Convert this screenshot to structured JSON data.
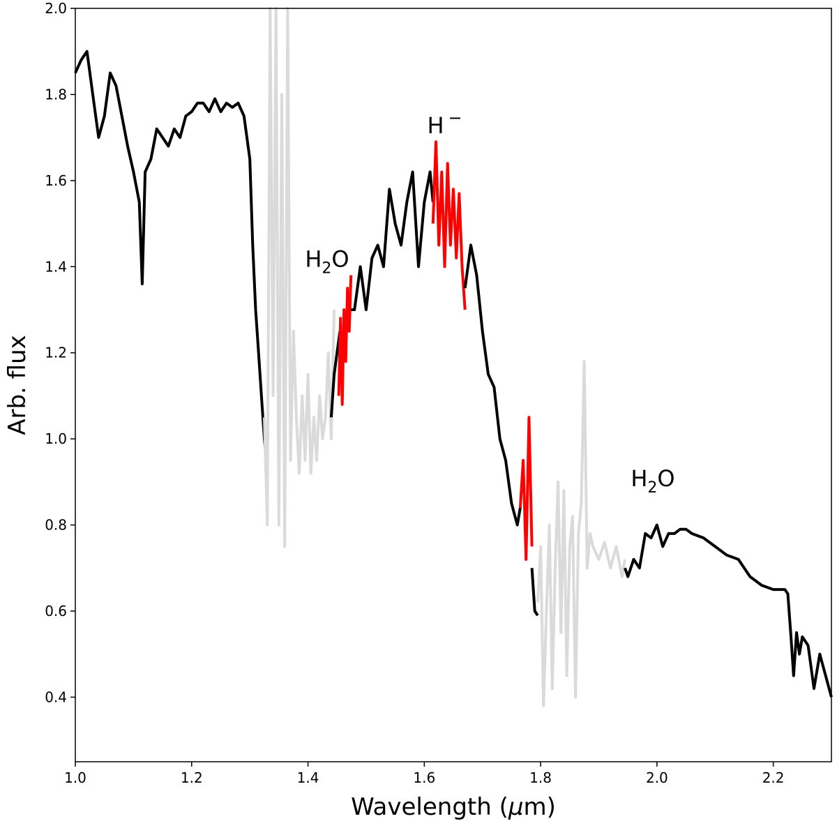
{
  "chart_data": {
    "type": "line",
    "title": "",
    "xlabel_parts": [
      "Wavelength (",
      "μ",
      "m)"
    ],
    "ylabel": "Arb. flux",
    "xlim": [
      1.0,
      2.3
    ],
    "ylim": [
      0.25,
      2.0
    ],
    "xticks": [
      "1.0",
      "1.2",
      "1.4",
      "1.6",
      "1.8",
      "2.0",
      "2.2"
    ],
    "yticks": [
      "0.4",
      "0.6",
      "0.8",
      "1.0",
      "1.2",
      "1.4",
      "1.6",
      "1.8",
      "2.0"
    ],
    "colors": {
      "spectrum": "#000000",
      "telluric": "#dadada",
      "highlight": "#ff0000"
    },
    "segments": [
      {
        "name": "spectrum-j-band",
        "color_key": "spectrum",
        "x": [
          1.0,
          1.01,
          1.02,
          1.03,
          1.04,
          1.05,
          1.06,
          1.07,
          1.08,
          1.09,
          1.1,
          1.11,
          1.115,
          1.12,
          1.13,
          1.14,
          1.15,
          1.16,
          1.17,
          1.18,
          1.19,
          1.2,
          1.21,
          1.22,
          1.23,
          1.24,
          1.25,
          1.26,
          1.27,
          1.28,
          1.29,
          1.3,
          1.305,
          1.31,
          1.315,
          1.32,
          1.325,
          1.33
        ],
        "y": [
          1.85,
          1.88,
          1.9,
          1.8,
          1.7,
          1.75,
          1.85,
          1.82,
          1.75,
          1.68,
          1.62,
          1.55,
          1.36,
          1.62,
          1.65,
          1.72,
          1.7,
          1.68,
          1.72,
          1.7,
          1.75,
          1.76,
          1.78,
          1.78,
          1.76,
          1.79,
          1.76,
          1.78,
          1.77,
          1.78,
          1.75,
          1.65,
          1.45,
          1.3,
          1.2,
          1.1,
          1.0,
          0.93
        ]
      },
      {
        "name": "telluric-1p4",
        "color_key": "telluric",
        "x": [
          1.325,
          1.33,
          1.335,
          1.34,
          1.345,
          1.35,
          1.355,
          1.36,
          1.365,
          1.37,
          1.375,
          1.38,
          1.385,
          1.39,
          1.395,
          1.4,
          1.405,
          1.41,
          1.415,
          1.42,
          1.425,
          1.43,
          1.435,
          1.44,
          1.445
        ],
        "y": [
          1.05,
          0.8,
          2.0,
          1.1,
          2.0,
          0.8,
          1.8,
          0.75,
          2.0,
          0.95,
          1.25,
          1.05,
          0.92,
          1.1,
          0.95,
          1.15,
          0.92,
          1.05,
          0.95,
          1.1,
          1.0,
          1.05,
          1.2,
          1.0,
          1.3
        ]
      },
      {
        "name": "spectrum-h-band-blue",
        "color_key": "spectrum",
        "x": [
          1.44,
          1.445,
          1.45,
          1.455
        ],
        "y": [
          1.05,
          1.15,
          1.2,
          1.25
        ]
      },
      {
        "name": "highlight-h2o-1p45",
        "color_key": "highlight",
        "x": [
          1.453,
          1.456,
          1.459,
          1.462,
          1.465,
          1.468,
          1.471,
          1.474
        ],
        "y": [
          1.1,
          1.28,
          1.08,
          1.3,
          1.18,
          1.35,
          1.25,
          1.38
        ]
      },
      {
        "name": "spectrum-h-band",
        "color_key": "spectrum",
        "x": [
          1.474,
          1.48,
          1.49,
          1.5,
          1.51,
          1.52,
          1.53,
          1.54,
          1.55,
          1.56,
          1.57,
          1.58,
          1.59,
          1.6,
          1.61,
          1.615
        ],
        "y": [
          1.3,
          1.3,
          1.4,
          1.3,
          1.42,
          1.45,
          1.4,
          1.58,
          1.5,
          1.45,
          1.55,
          1.62,
          1.4,
          1.55,
          1.62,
          1.55
        ]
      },
      {
        "name": "highlight-h-minus",
        "color_key": "highlight",
        "x": [
          1.615,
          1.62,
          1.625,
          1.63,
          1.635,
          1.64,
          1.645,
          1.65,
          1.655,
          1.66,
          1.665,
          1.67
        ],
        "y": [
          1.5,
          1.69,
          1.45,
          1.62,
          1.4,
          1.64,
          1.45,
          1.58,
          1.42,
          1.57,
          1.4,
          1.3
        ]
      },
      {
        "name": "spectrum-h-band-red",
        "color_key": "spectrum",
        "x": [
          1.67,
          1.68,
          1.69,
          1.7,
          1.71,
          1.72,
          1.73,
          1.74,
          1.75,
          1.76,
          1.765
        ],
        "y": [
          1.35,
          1.45,
          1.38,
          1.25,
          1.15,
          1.12,
          1.0,
          0.95,
          0.85,
          0.8,
          0.84
        ]
      },
      {
        "name": "highlight-h2o-1p78",
        "color_key": "highlight",
        "x": [
          1.765,
          1.77,
          1.775,
          1.78,
          1.785
        ],
        "y": [
          0.84,
          0.95,
          0.72,
          1.05,
          0.75
        ]
      },
      {
        "name": "spectrum-h-edge",
        "color_key": "spectrum",
        "x": [
          1.785,
          1.79,
          1.795
        ],
        "y": [
          0.7,
          0.6,
          0.59
        ]
      },
      {
        "name": "telluric-1p9",
        "color_key": "telluric",
        "x": [
          1.795,
          1.8,
          1.805,
          1.81,
          1.815,
          1.82,
          1.825,
          1.83,
          1.835,
          1.84,
          1.845,
          1.85,
          1.855,
          1.86,
          1.865,
          1.87,
          1.875,
          1.88,
          1.885,
          1.89,
          1.9,
          1.91,
          1.92,
          1.93,
          1.94,
          1.945
        ],
        "y": [
          0.62,
          0.75,
          0.38,
          0.6,
          0.8,
          0.42,
          0.7,
          0.9,
          0.55,
          0.88,
          0.45,
          0.75,
          0.82,
          0.4,
          0.78,
          0.85,
          1.18,
          0.7,
          0.78,
          0.75,
          0.72,
          0.76,
          0.7,
          0.75,
          0.68,
          0.72
        ]
      },
      {
        "name": "spectrum-k-band",
        "color_key": "spectrum",
        "x": [
          1.945,
          1.95,
          1.96,
          1.97,
          1.98,
          1.99,
          2.0,
          2.01,
          2.02,
          2.03,
          2.04,
          2.05,
          2.06,
          2.08,
          2.1,
          2.12,
          2.14,
          2.16,
          2.18,
          2.2,
          2.22,
          2.225,
          2.23,
          2.235,
          2.24,
          2.245,
          2.25,
          2.26,
          2.27,
          2.28,
          2.29,
          2.3
        ],
        "y": [
          0.7,
          0.68,
          0.72,
          0.7,
          0.78,
          0.77,
          0.8,
          0.75,
          0.78,
          0.78,
          0.79,
          0.79,
          0.78,
          0.77,
          0.75,
          0.73,
          0.72,
          0.68,
          0.66,
          0.65,
          0.65,
          0.64,
          0.55,
          0.45,
          0.55,
          0.5,
          0.54,
          0.52,
          0.42,
          0.5,
          0.45,
          0.4
        ]
      }
    ],
    "annotations": [
      {
        "name": "annotation-h2o-left",
        "text": "H",
        "sub": "2",
        "rest": "O",
        "x": 1.395,
        "y": 1.4
      },
      {
        "name": "annotation-h-minus",
        "text": "H",
        "sup": "−",
        "x": 1.605,
        "y": 1.71
      },
      {
        "name": "annotation-h2o-right",
        "text": "H",
        "sub": "2",
        "rest": "O",
        "x": 1.955,
        "y": 0.89
      }
    ]
  }
}
